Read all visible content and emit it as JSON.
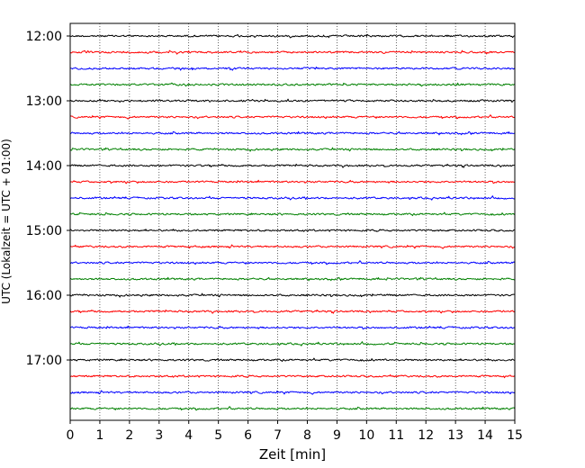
{
  "chart_data": {
    "type": "line",
    "title": "",
    "xlabel": "Zeit  [min]",
    "ylabel": "UTC (Lokalzeit = UTC + 01:00)",
    "xlim": [
      0,
      15
    ],
    "x_ticks": [
      "0",
      "1",
      "2",
      "3",
      "4",
      "5",
      "6",
      "7",
      "8",
      "9",
      "10",
      "11",
      "12",
      "13",
      "14",
      "15"
    ],
    "y_tick_labels": [
      "12:00",
      "13:00",
      "14:00",
      "15:00",
      "16:00",
      "17:00"
    ],
    "grid": "vertical dotted lines at each minute",
    "trace_interval_minutes": 15,
    "trace_start": "12:00",
    "trace_count": 24,
    "colors_cycle": [
      "#000000",
      "#ff0000",
      "#0000ff",
      "#008000"
    ],
    "series": [
      {
        "start": "12:00",
        "color": "#000000"
      },
      {
        "start": "12:15",
        "color": "#ff0000"
      },
      {
        "start": "12:30",
        "color": "#0000ff"
      },
      {
        "start": "12:45",
        "color": "#008000"
      },
      {
        "start": "13:00",
        "color": "#000000"
      },
      {
        "start": "13:15",
        "color": "#ff0000"
      },
      {
        "start": "13:30",
        "color": "#0000ff"
      },
      {
        "start": "13:45",
        "color": "#008000"
      },
      {
        "start": "14:00",
        "color": "#000000"
      },
      {
        "start": "14:15",
        "color": "#ff0000"
      },
      {
        "start": "14:30",
        "color": "#0000ff"
      },
      {
        "start": "14:45",
        "color": "#008000"
      },
      {
        "start": "15:00",
        "color": "#000000"
      },
      {
        "start": "15:15",
        "color": "#ff0000"
      },
      {
        "start": "15:30",
        "color": "#0000ff"
      },
      {
        "start": "15:45",
        "color": "#008000"
      },
      {
        "start": "16:00",
        "color": "#000000"
      },
      {
        "start": "16:15",
        "color": "#ff0000"
      },
      {
        "start": "16:30",
        "color": "#0000ff"
      },
      {
        "start": "16:45",
        "color": "#008000"
      },
      {
        "start": "17:00",
        "color": "#000000"
      },
      {
        "start": "17:15",
        "color": "#ff0000"
      },
      {
        "start": "17:30",
        "color": "#0000ff"
      },
      {
        "start": "17:45",
        "color": "#008000"
      }
    ]
  }
}
